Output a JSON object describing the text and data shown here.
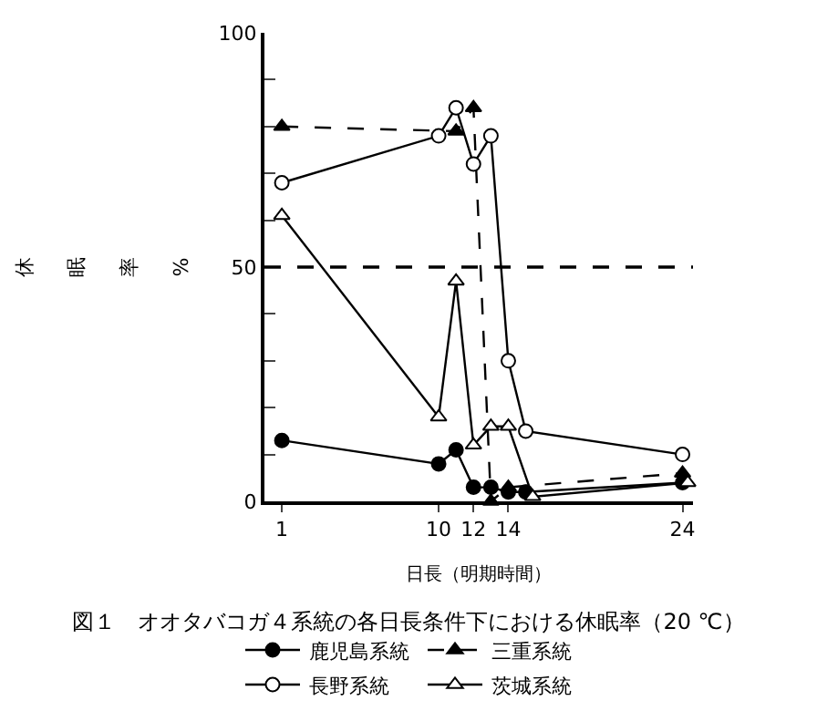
{
  "chart_data": {
    "type": "line",
    "title": "図１　オオタバコガ４系統の各日長条件下における休眠率（20 ℃）",
    "xlabel": "日長（明期時間）",
    "ylabel": "休眠率%",
    "x": [
      1,
      10,
      11,
      12,
      13,
      14,
      15,
      24
    ],
    "series": [
      {
        "name": "鹿児島系統",
        "color": "#000000",
        "marker": "circle",
        "line_style": "solid",
        "values": [
          13,
          8,
          11,
          3,
          3,
          2,
          2,
          4
        ]
      },
      {
        "name": "三重系統",
        "color": "#000000",
        "marker": "triangle",
        "line_style": "dashed",
        "values": [
          80,
          null,
          79,
          84,
          0,
          3,
          null,
          6
        ]
      },
      {
        "name": "長野系統",
        "color": "#000000",
        "marker": "circle-open",
        "line_style": "solid",
        "values": [
          68,
          78,
          84,
          72,
          78,
          30,
          15,
          10
        ]
      },
      {
        "name": "茨城系統",
        "color": "#000000",
        "marker": "triangle-open",
        "line_style": "solid",
        "x": [
          1,
          10,
          11,
          12,
          13,
          14,
          15.4,
          24.3
        ],
        "values": [
          61,
          18,
          47,
          12,
          16,
          16,
          1,
          4
        ]
      }
    ],
    "xlim": [
      0,
      24.6
    ],
    "xticks": [
      1,
      10,
      12,
      14,
      24
    ],
    "ylim": [
      0,
      100
    ],
    "yticks": [
      0,
      {
        "value": 10,
        "label": null
      },
      {
        "value": 20,
        "label": null
      },
      {
        "value": 30,
        "label": null
      },
      {
        "value": 40,
        "label": null
      },
      50,
      {
        "value": 60,
        "label": null
      },
      {
        "value": 70,
        "label": null
      },
      {
        "value": 80,
        "label": null
      },
      {
        "value": 90,
        "label": null
      },
      100
    ],
    "ref_lines": [
      {
        "axis": "y",
        "value": 50,
        "color": "#000000",
        "line_style": "dashed"
      }
    ],
    "grid": false,
    "legend": "bottom"
  }
}
